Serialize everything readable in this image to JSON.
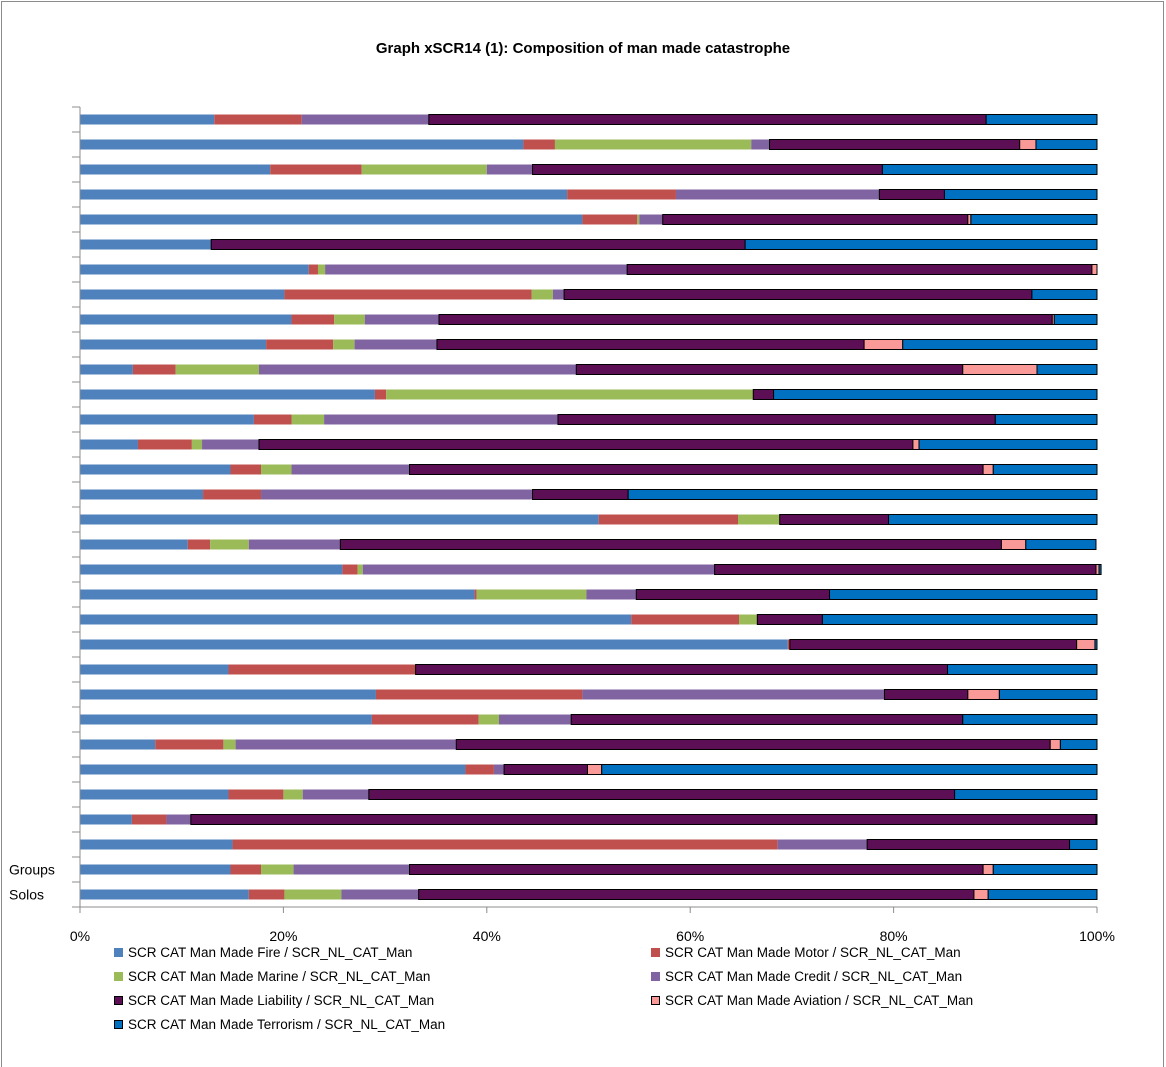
{
  "chart_data": {
    "type": "bar",
    "orientation": "horizontal",
    "stacked": "percent",
    "title": "Graph xSCR14 (1): Composition of man made catastrophe",
    "xlabel": "",
    "ylabel": "",
    "xlim": [
      0,
      100
    ],
    "x_ticks": [
      "0%",
      "20%",
      "40%",
      "60%",
      "80%",
      "100%"
    ],
    "grid": false,
    "legend_position": "bottom",
    "categories": [
      "Solos",
      "Groups",
      "",
      "",
      "",
      "",
      "",
      "",
      "",
      "",
      "",
      "",
      "",
      "",
      "",
      "",
      "",
      "",
      "",
      "",
      "",
      "",
      "",
      "",
      "",
      "",
      "",
      "",
      "",
      "",
      "",
      ""
    ],
    "series": [
      {
        "name": "SCR CAT Man Made Fire / SCR_NL_CAT_Man",
        "color": "#4f81bd",
        "values": [
          16.6,
          14.8,
          15.0,
          5.1,
          14.6,
          37.9,
          7.4,
          28.7,
          29.1,
          14.6,
          69.6,
          54.2,
          38.8,
          25.8,
          10.6,
          51.0,
          12.1,
          14.8,
          5.7,
          17.1,
          29.0,
          5.2,
          18.3,
          20.8,
          20.1,
          22.5,
          12.9,
          49.4,
          47.9,
          18.7,
          43.6,
          13.2
        ]
      },
      {
        "name": "SCR CAT Man Made Motor / SCR_NL_CAT_Man",
        "color": "#c0504d",
        "values": [
          3.5,
          3.0,
          53.6,
          3.4,
          5.4,
          2.8,
          6.7,
          10.5,
          20.3,
          18.4,
          0.2,
          10.6,
          0.2,
          1.5,
          2.2,
          13.7,
          5.7,
          3.0,
          5.3,
          3.7,
          1.1,
          4.2,
          6.6,
          4.2,
          24.3,
          0.9,
          0.0,
          5.4,
          10.7,
          9.0,
          3.1,
          8.6
        ]
      },
      {
        "name": "SCR CAT Man Made Marine / SCR_NL_CAT_Man",
        "color": "#9bbb59",
        "values": [
          5.6,
          3.2,
          0.0,
          0.0,
          1.9,
          0.0,
          1.2,
          2.0,
          0.0,
          0.0,
          0.0,
          1.8,
          10.8,
          0.5,
          3.8,
          4.1,
          0.0,
          3.0,
          1.0,
          3.2,
          36.1,
          8.2,
          2.1,
          3.0,
          2.1,
          0.7,
          0.0,
          0.2,
          0.0,
          12.3,
          19.3,
          0.0
        ]
      },
      {
        "name": "SCR CAT Man Made Credit / SCR_NL_CAT_Man",
        "color": "#8064a2",
        "values": [
          7.6,
          11.4,
          8.8,
          2.4,
          6.5,
          1.0,
          21.7,
          7.1,
          29.7,
          0.0,
          0.0,
          0.0,
          4.9,
          34.6,
          9.0,
          0.0,
          26.7,
          11.6,
          5.6,
          23.0,
          0.0,
          31.2,
          8.1,
          7.3,
          1.1,
          29.7,
          0.0,
          2.3,
          20.0,
          4.5,
          1.8,
          12.5
        ]
      },
      {
        "name": "SCR CAT Man Made Liability / SCR_NL_CAT_Man",
        "color": "#5c0f55",
        "values": [
          54.6,
          56.4,
          19.9,
          89.0,
          57.6,
          8.2,
          58.4,
          38.5,
          8.2,
          52.3,
          28.2,
          6.4,
          19.0,
          37.5,
          65.0,
          10.7,
          9.4,
          56.4,
          64.3,
          43.0,
          2.0,
          38.0,
          42.0,
          60.3,
          46.0,
          45.7,
          52.5,
          30.0,
          6.4,
          34.4,
          24.6,
          54.8
        ]
      },
      {
        "name": "SCR CAT Man Made Aviation / SCR_NL_CAT_Man",
        "color": "#fa9a98",
        "values": [
          1.4,
          1.0,
          0.0,
          0.0,
          0.0,
          1.4,
          1.0,
          0.0,
          3.1,
          0.0,
          1.8,
          0.0,
          0.0,
          0.3,
          2.4,
          0.0,
          0.0,
          1.0,
          0.6,
          0.0,
          0.0,
          7.3,
          3.8,
          0.2,
          0.0,
          0.5,
          0.0,
          0.3,
          0.0,
          0.0,
          1.6,
          0.0
        ]
      },
      {
        "name": "SCR CAT Man Made Terrorism / SCR_NL_CAT_Man",
        "color": "#0070c0",
        "values": [
          10.7,
          10.2,
          2.7,
          0.1,
          14.0,
          48.7,
          3.6,
          13.2,
          9.6,
          14.7,
          0.2,
          27.0,
          26.3,
          0.2,
          6.9,
          20.5,
          46.1,
          10.2,
          17.5,
          10.0,
          31.8,
          5.9,
          19.1,
          4.2,
          6.4,
          0.0,
          34.6,
          12.4,
          15.0,
          21.1,
          6.0,
          10.9
        ]
      }
    ]
  }
}
